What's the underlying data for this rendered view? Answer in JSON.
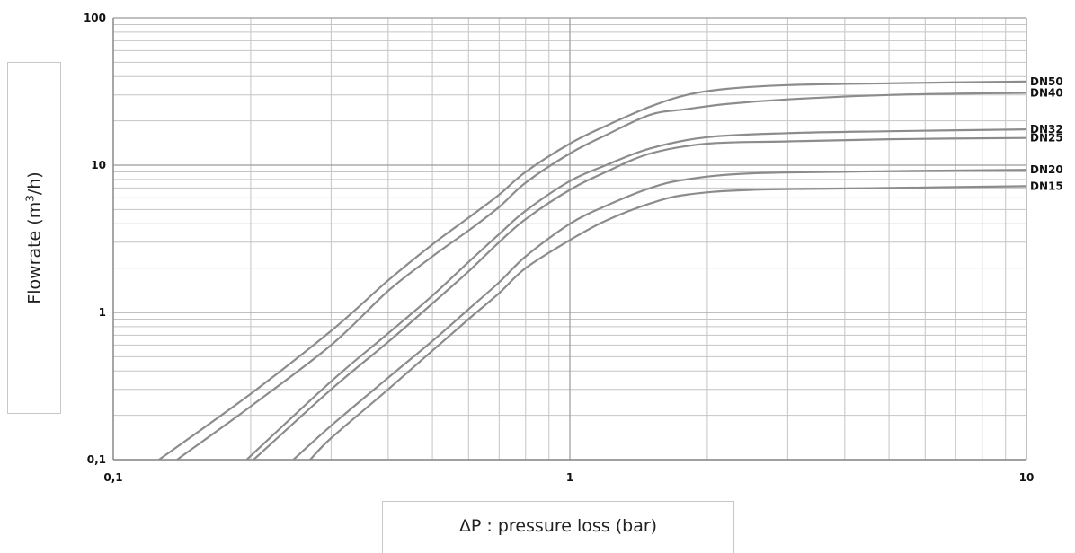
{
  "chart_data": {
    "type": "line",
    "title": "",
    "xlabel": "ΔP : pressure loss (bar)",
    "ylabel_main": "Flowrate (m",
    "ylabel_sup": "3",
    "ylabel_end": "/h)",
    "x_scale": "log",
    "y_scale": "log",
    "xlim": [
      0.1,
      10
    ],
    "ylim": [
      0.1,
      100
    ],
    "grid": true,
    "x_ticks": [
      {
        "value": 0.1,
        "label": "0,1"
      },
      {
        "value": 1,
        "label": "1"
      },
      {
        "value": 10,
        "label": "10"
      }
    ],
    "y_ticks": [
      {
        "value": 0.1,
        "label": "0,1"
      },
      {
        "value": 1,
        "label": "1"
      },
      {
        "value": 10,
        "label": "10"
      },
      {
        "value": 100,
        "label": "100"
      }
    ],
    "series": [
      {
        "name": "DN50",
        "x": [
          0.126,
          0.2,
          0.3,
          0.4,
          0.5,
          0.6,
          0.7,
          0.8,
          1.0,
          1.2,
          1.5,
          1.8,
          2.2,
          3,
          5,
          10
        ],
        "y": [
          0.1,
          0.28,
          0.75,
          1.65,
          2.9,
          4.4,
          6.3,
          9.0,
          14,
          18.5,
          25,
          30,
          33,
          35,
          36,
          37
        ]
      },
      {
        "name": "DN40",
        "x": [
          0.138,
          0.2,
          0.3,
          0.4,
          0.5,
          0.6,
          0.7,
          0.8,
          1.0,
          1.2,
          1.5,
          1.8,
          2.2,
          3,
          5,
          10
        ],
        "y": [
          0.1,
          0.23,
          0.6,
          1.4,
          2.4,
          3.6,
          5.2,
          7.6,
          12,
          16,
          22,
          24,
          26,
          28,
          30,
          31
        ]
      },
      {
        "name": "DN32",
        "x": [
          0.196,
          0.3,
          0.4,
          0.5,
          0.6,
          0.7,
          0.8,
          1.0,
          1.2,
          1.5,
          2,
          3,
          5,
          10
        ],
        "y": [
          0.1,
          0.34,
          0.72,
          1.3,
          2.2,
          3.4,
          4.9,
          7.8,
          10,
          13,
          15.5,
          16.5,
          17,
          17.5
        ]
      },
      {
        "name": "DN25",
        "x": [
          0.203,
          0.3,
          0.4,
          0.5,
          0.6,
          0.7,
          0.8,
          1.0,
          1.2,
          1.5,
          2,
          3,
          5,
          10
        ],
        "y": [
          0.1,
          0.3,
          0.63,
          1.15,
          1.9,
          3.0,
          4.3,
          6.8,
          9,
          12,
          14,
          14.5,
          15,
          15.3
        ]
      },
      {
        "name": "DN20",
        "x": [
          0.248,
          0.3,
          0.4,
          0.5,
          0.6,
          0.7,
          0.8,
          1.0,
          1.2,
          1.5,
          1.8,
          2.5,
          5,
          10
        ],
        "y": [
          0.1,
          0.17,
          0.36,
          0.64,
          1.05,
          1.6,
          2.4,
          4.0,
          5.3,
          7.0,
          8.0,
          8.8,
          9.1,
          9.3
        ]
      },
      {
        "name": "DN15",
        "x": [
          0.27,
          0.3,
          0.4,
          0.5,
          0.6,
          0.7,
          0.8,
          1.0,
          1.2,
          1.5,
          1.8,
          2.5,
          5,
          10
        ],
        "y": [
          0.1,
          0.14,
          0.3,
          0.55,
          0.9,
          1.35,
          2.0,
          3.1,
          4.2,
          5.5,
          6.3,
          6.8,
          7.0,
          7.2
        ]
      }
    ]
  }
}
